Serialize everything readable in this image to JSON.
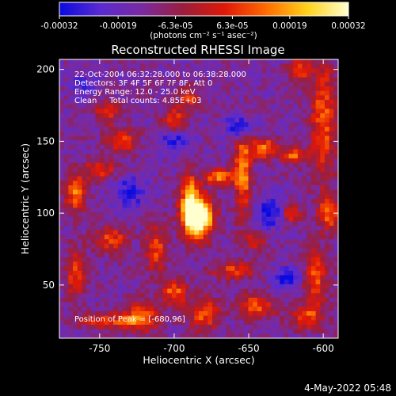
{
  "chart_data": {
    "type": "heatmap",
    "title": "Reconstructed RHESSI Image",
    "xlabel": "Heliocentric X (arcsec)",
    "ylabel": "Heliocentric Y (arcsec)",
    "xlim": [
      -777,
      -590
    ],
    "ylim": [
      13,
      207
    ],
    "x_ticks": [
      -750,
      -700,
      -650,
      -600
    ],
    "x_tick_labels": [
      "-750",
      "-700",
      "-650",
      "-600"
    ],
    "y_ticks": [
      50,
      100,
      150,
      200
    ],
    "y_tick_labels": [
      "50",
      "100",
      "150",
      "200"
    ],
    "colorbar": {
      "min": -0.00032,
      "max": 0.00032,
      "ticks": [
        -0.00032,
        -0.00019,
        -6.3e-05,
        6.3e-05,
        0.00019,
        0.00032
      ],
      "tick_labels": [
        "-0.00032",
        "-0.00019",
        "-6.3e-05",
        "6.3e-05",
        "0.00019",
        "0.00032"
      ],
      "unit_label": "(photons cm⁻² s⁻¹ asec⁻²)",
      "colormap": [
        "#0a0ae0",
        "#5a2bd0",
        "#7a2aa0",
        "#9a1e3c",
        "#e01808",
        "#ff6a00",
        "#ffd21a",
        "#ffffd0"
      ]
    },
    "annotations": [
      "22-Oct-2004 06:32:28.000 to 06:38:28.000",
      "Detectors: 3F 4F 5F 6F 7F 8F, Att 0",
      "Energy Range: 12.0 - 25.0 keV",
      "Clean     Total counts: 4.85E+03",
      "Position of Peak = [-680,96]"
    ],
    "peak": {
      "x": -680,
      "y": 96
    },
    "background_level": -0.00014,
    "grid": false,
    "legend": "none",
    "blobs": [
      {
        "x": -684,
        "y": 97,
        "sx": 7,
        "sy": 10,
        "amp": 0.0006
      },
      {
        "x": -690,
        "y": 112,
        "sx": 4,
        "sy": 12,
        "amp": 0.0003
      },
      {
        "x": -670,
        "y": 125,
        "sx": 7,
        "sy": 4,
        "amp": 0.0003
      },
      {
        "x": -654,
        "y": 128,
        "sx": 4,
        "sy": 20,
        "amp": 0.0003
      },
      {
        "x": -640,
        "y": 145,
        "sx": 7,
        "sy": 5,
        "amp": 0.00028
      },
      {
        "x": -620,
        "y": 140,
        "sx": 6,
        "sy": 4,
        "amp": 0.00026
      },
      {
        "x": -616,
        "y": 200,
        "sx": 5,
        "sy": 6,
        "amp": 0.00024
      },
      {
        "x": -600,
        "y": 165,
        "sx": 6,
        "sy": 30,
        "amp": 0.00025
      },
      {
        "x": -622,
        "y": 100,
        "sx": 5,
        "sy": 5,
        "amp": 0.00022
      },
      {
        "x": -596,
        "y": 100,
        "sx": 5,
        "sy": 8,
        "amp": 0.00026
      },
      {
        "x": -605,
        "y": 55,
        "sx": 5,
        "sy": 15,
        "amp": 0.00024
      },
      {
        "x": -645,
        "y": 35,
        "sx": 8,
        "sy": 6,
        "amp": 0.00026
      },
      {
        "x": -660,
        "y": 60,
        "sx": 10,
        "sy": 4,
        "amp": 0.00022
      },
      {
        "x": -680,
        "y": 30,
        "sx": 8,
        "sy": 8,
        "amp": 0.00024
      },
      {
        "x": -700,
        "y": 45,
        "sx": 6,
        "sy": 6,
        "amp": 0.00026
      },
      {
        "x": -722,
        "y": 28,
        "sx": 8,
        "sy": 8,
        "amp": 0.00024
      },
      {
        "x": -744,
        "y": 25,
        "sx": 15,
        "sy": 4,
        "amp": 0.0002
      },
      {
        "x": -766,
        "y": 58,
        "sx": 5,
        "sy": 12,
        "amp": 0.00022
      },
      {
        "x": -766,
        "y": 114,
        "sx": 5,
        "sy": 9,
        "amp": 0.00028
      },
      {
        "x": -750,
        "y": 130,
        "sx": 8,
        "sy": 5,
        "amp": 0.00022
      },
      {
        "x": -742,
        "y": 82,
        "sx": 8,
        "sy": 6,
        "amp": 0.00022
      },
      {
        "x": -712,
        "y": 75,
        "sx": 5,
        "sy": 12,
        "amp": 0.00022
      },
      {
        "x": -735,
        "y": 150,
        "sx": 8,
        "sy": 6,
        "amp": 0.0002
      },
      {
        "x": -745,
        "y": 170,
        "sx": 6,
        "sy": 6,
        "amp": 0.0002
      },
      {
        "x": -700,
        "y": 165,
        "sx": 6,
        "sy": 6,
        "amp": 0.00022
      },
      {
        "x": -690,
        "y": 180,
        "sx": 5,
        "sy": 5,
        "amp": 0.0002
      },
      {
        "x": -645,
        "y": 80,
        "sx": 5,
        "sy": 5,
        "amp": 0.0002
      },
      {
        "x": -612,
        "y": 28,
        "sx": 8,
        "sy": 6,
        "amp": 0.00022
      },
      {
        "x": -656,
        "y": 160,
        "sx": 6,
        "sy": 6,
        "amp": -0.0002
      },
      {
        "x": -635,
        "y": 100,
        "sx": 7,
        "sy": 7,
        "amp": -0.0002
      },
      {
        "x": -625,
        "y": 55,
        "sx": 6,
        "sy": 5,
        "amp": -0.0002
      },
      {
        "x": -700,
        "y": 150,
        "sx": 8,
        "sy": 6,
        "amp": -0.00015
      },
      {
        "x": -730,
        "y": 115,
        "sx": 8,
        "sy": 8,
        "amp": -0.00015
      },
      {
        "x": -760,
        "y": 190,
        "sx": 6,
        "sy": 6,
        "amp": -0.0001
      }
    ]
  },
  "footer": {
    "timestamp": "4-May-2022 05:48"
  }
}
